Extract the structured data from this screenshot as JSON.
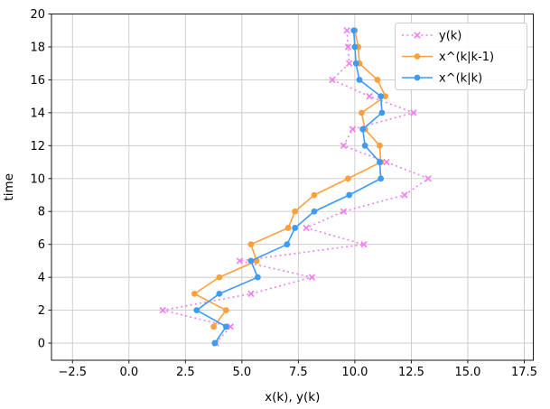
{
  "chart_data": {
    "type": "line",
    "title": "",
    "xlabel": "x(k), y(k)",
    "ylabel": "time",
    "orientation": "value-on-x-time-on-y",
    "grid": true,
    "legend_position": "upper right",
    "xlim": [
      -3.43,
      17.9
    ],
    "ylim": [
      -1.04,
      20.0
    ],
    "xticks": [
      -2.5,
      0.0,
      2.5,
      5.0,
      7.5,
      10.0,
      12.5,
      15.0,
      17.5
    ],
    "yticks": [
      0,
      2,
      4,
      6,
      8,
      10,
      12,
      14,
      16,
      18,
      20
    ],
    "colors": {
      "grid": "#c9c9c9",
      "spine": "#1a1a1a",
      "measurement": "#ee82ee",
      "prediction": "#ffa03e",
      "estimate": "#3d9bf5",
      "legend_edge": "#cccccc",
      "background": "#ffffff"
    },
    "series": [
      {
        "id": "y-k",
        "name": "y(k)",
        "color": "#ee82ee",
        "style": "dotted",
        "marker": "x",
        "t": [
          0,
          1,
          2,
          3,
          4,
          5,
          6,
          7,
          8,
          9,
          10,
          11,
          12,
          13,
          14,
          15,
          16,
          17,
          18,
          19
        ],
        "values": [
          3.85,
          4.5,
          1.5,
          5.4,
          8.1,
          4.9,
          10.4,
          7.85,
          9.5,
          12.2,
          13.25,
          11.4,
          9.5,
          9.9,
          12.6,
          10.65,
          9.0,
          9.75,
          9.7,
          9.65
        ]
      },
      {
        "id": "x-pred",
        "name": "x^(k|k-1)",
        "color": "#ffa03e",
        "style": "solid",
        "marker": "circle",
        "t": [
          1,
          2,
          3,
          4,
          5,
          6,
          7,
          8,
          9,
          10,
          11,
          12,
          13,
          14,
          15,
          16,
          17,
          18,
          19
        ],
        "values": [
          3.75,
          4.3,
          2.9,
          4.0,
          5.65,
          5.4,
          7.05,
          7.35,
          8.2,
          9.7,
          11.15,
          11.1,
          10.45,
          10.3,
          11.35,
          11.0,
          10.2,
          10.15,
          10.0
        ]
      },
      {
        "id": "x-filt",
        "name": "x^(k|k)",
        "color": "#3d9bf5",
        "style": "solid",
        "marker": "circle",
        "t": [
          0,
          1,
          2,
          3,
          4,
          5,
          6,
          7,
          8,
          9,
          10,
          11,
          12,
          13,
          14,
          15,
          16,
          17,
          18,
          19
        ],
        "values": [
          3.8,
          4.3,
          3.0,
          4.0,
          5.7,
          5.4,
          7.0,
          7.35,
          8.2,
          9.75,
          11.15,
          11.1,
          10.45,
          10.35,
          11.2,
          11.15,
          10.2,
          10.05,
          10.0,
          9.95
        ]
      }
    ],
    "legend": {
      "labels": [
        "y(k)",
        "x^(k|k-1)",
        "x^(k|k)"
      ]
    }
  }
}
